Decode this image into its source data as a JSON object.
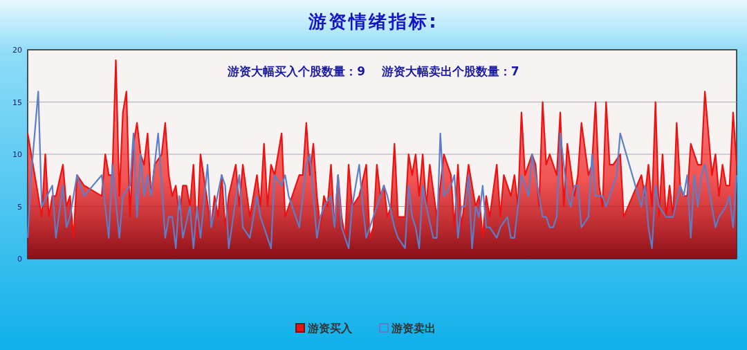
{
  "chart_data": {
    "type": "line",
    "title": "游资情绪指标:",
    "annotations": [
      "游资大幅买入个股数量：9    游资大幅卖出个股数量：7"
    ],
    "ylim": [
      0,
      20
    ],
    "yticks": [
      0,
      5,
      10,
      15,
      20
    ],
    "grid": "y",
    "legend": "bottom",
    "tick_labels": "y",
    "categories": [
      null,
      null,
      null,
      null,
      null,
      null,
      null,
      null,
      null,
      null,
      null,
      null,
      null,
      null,
      null,
      null,
      null,
      null,
      null,
      null,
      null,
      null,
      null,
      null,
      null,
      null,
      null,
      null,
      null,
      null,
      null,
      null,
      null,
      null,
      null,
      null,
      null,
      null,
      null,
      null,
      null,
      null,
      null,
      null,
      null,
      null,
      null,
      null,
      null,
      null,
      null,
      null,
      null,
      null,
      null,
      null,
      null,
      null,
      null,
      null,
      null,
      null,
      null,
      null,
      null,
      null,
      null,
      null,
      null,
      null,
      null,
      null,
      null,
      null,
      null,
      null,
      null,
      null,
      null,
      null,
      null,
      null,
      null,
      null,
      null,
      null,
      null,
      null,
      null,
      null,
      null,
      null,
      null,
      null,
      null,
      null,
      null,
      null,
      null,
      null,
      null,
      null,
      null,
      null,
      null,
      null,
      null,
      null,
      null,
      null,
      null,
      null,
      null,
      null,
      null,
      null,
      null,
      null,
      null,
      null,
      null,
      null,
      null,
      null,
      null,
      null,
      null,
      null,
      null,
      null,
      null,
      null,
      null,
      null,
      null,
      null,
      null,
      null,
      null,
      null,
      null,
      null,
      null,
      null,
      null,
      null,
      null,
      null,
      null,
      null,
      null,
      null,
      null,
      null,
      null,
      null,
      null,
      null,
      null,
      null,
      null,
      null,
      null,
      null,
      null,
      null,
      null,
      null,
      null,
      null,
      null,
      null,
      null,
      null,
      null,
      null,
      null,
      null,
      null,
      null,
      null,
      null,
      null,
      null,
      null,
      null,
      null,
      null,
      null,
      null,
      null,
      null,
      null,
      null,
      null,
      null,
      null,
      null,
      null,
      null,
      null,
      null
    ],
    "series": [
      {
        "name": "游资买入",
        "type": "area",
        "color": "#ee1111",
        "values": [
          12,
          null,
          null,
          null,
          4,
          10,
          4,
          6,
          6,
          null,
          9,
          5,
          6,
          2,
          8,
          null,
          7,
          null,
          null,
          null,
          null,
          6,
          10,
          8,
          8,
          19,
          6,
          14,
          16,
          4,
          11,
          13,
          10,
          9,
          12,
          6,
          9,
          null,
          10,
          13,
          8,
          6,
          7,
          4,
          7,
          7,
          5,
          9,
          2,
          10,
          null,
          null,
          3,
          6,
          4,
          8,
          3,
          6,
          null,
          9,
          5,
          9,
          null,
          4,
          null,
          8,
          5,
          11,
          5,
          9,
          8,
          null,
          12,
          4,
          null,
          null,
          null,
          8,
          8,
          13,
          8,
          11,
          6,
          3,
          6,
          5,
          9,
          3,
          8,
          4,
          2,
          9,
          5,
          null,
          6,
          null,
          9,
          2,
          3,
          9,
          6,
          7,
          4,
          5,
          11,
          4,
          null,
          4,
          10,
          8,
          10,
          6,
          10,
          5,
          9,
          null,
          4,
          7,
          10,
          null,
          8,
          3,
          9,
          3,
          null,
          9,
          null,
          5,
          6,
          2,
          6,
          4,
          null,
          9,
          4,
          8,
          7,
          6,
          8,
          5,
          14,
          8,
          null,
          10,
          9,
          5,
          15,
          9,
          10,
          null,
          8,
          14,
          5,
          11,
          null,
          6,
          8,
          13,
          null,
          8,
          9,
          15,
          7,
          5,
          15,
          9,
          9,
          null,
          10,
          4,
          null,
          null,
          null,
          null,
          8,
          6,
          9,
          5,
          15,
          4,
          10,
          4,
          7,
          4,
          13,
          7,
          6,
          6,
          11,
          10,
          9,
          9,
          16,
          null,
          8,
          10,
          6,
          9,
          7,
          7,
          14,
          9
        ]
      },
      {
        "name": "游资卖出",
        "type": "line",
        "color": "#5b7fc8",
        "values": [
          2,
          8,
          null,
          16,
          5,
          null,
          null,
          7,
          2,
          null,
          7,
          3,
          4,
          null,
          8,
          null,
          6,
          null,
          null,
          null,
          null,
          8,
          null,
          2,
          9,
          null,
          2,
          6,
          null,
          7,
          12,
          4,
          10,
          6,
          8,
          6,
          null,
          12,
          null,
          2,
          4,
          4,
          1,
          6,
          2,
          null,
          5,
          1,
          5,
          2,
          null,
          9,
          3,
          null,
          null,
          8,
          7,
          1,
          null,
          null,
          8,
          3,
          null,
          2,
          null,
          6,
          4,
          null,
          null,
          1,
          8,
          null,
          7,
          8,
          6,
          null,
          null,
          3,
          6,
          9,
          10,
          null,
          2,
          4,
          5,
          null,
          6,
          3,
          8,
          3,
          null,
          1,
          5,
          null,
          9,
          5,
          2,
          3,
          null,
          5,
          6,
          7,
          6,
          null,
          3,
          2,
          null,
          1,
          7,
          4,
          3,
          1,
          7,
          5,
          null,
          2,
          2,
          12,
          6,
          null,
          7,
          8,
          2,
          5,
          5,
          8,
          1,
          5,
          4,
          7,
          3,
          3,
          null,
          2,
          3,
          null,
          4,
          2,
          2,
          null,
          8,
          null,
          6,
          10,
          8,
          null,
          4,
          4,
          3,
          3,
          4,
          12,
          9,
          6,
          5,
          7,
          7,
          3,
          null,
          4,
          10,
          6,
          null,
          6,
          5,
          null,
          7,
          8,
          12,
          null,
          null,
          null,
          null,
          null,
          5,
          7,
          3,
          1,
          7,
          5,
          null,
          4,
          null,
          4,
          null,
          7,
          6,
          8,
          2,
          8,
          5,
          8,
          9,
          null,
          5,
          3,
          4,
          null,
          5,
          6,
          3,
          8
        ]
      }
    ]
  }
}
